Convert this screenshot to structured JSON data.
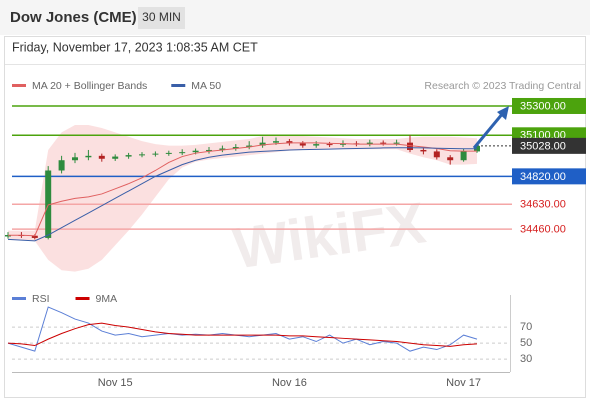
{
  "header": {
    "title": "Dow Jones (CME)",
    "interval": "30 MIN",
    "datetime": "Friday, November 17, 2023 1:08:35 AM CET"
  },
  "watermark": "WikiFX",
  "chart_data": [
    {
      "type": "candlestick",
      "credit": "Research © 2023 Trading Central",
      "up_color": "#2e8b3e",
      "down_color": "#b22222",
      "categories": [
        null,
        null,
        null,
        null,
        null,
        null,
        null,
        null,
        "Nov 15",
        null,
        null,
        null,
        null,
        null,
        null,
        null,
        null,
        null,
        null,
        null,
        null,
        "Nov 16",
        null,
        null,
        null,
        null,
        null,
        null,
        null,
        null,
        null,
        null,
        null,
        null,
        "Nov 17",
        null
      ],
      "candles": [
        {
          "open": 34410,
          "high": 34440,
          "low": 34395,
          "close": 34420
        },
        {
          "open": 34420,
          "high": 34440,
          "low": 34400,
          "close": 34415
        },
        {
          "open": 34415,
          "high": 34425,
          "low": 34390,
          "close": 34400
        },
        {
          "open": 34400,
          "high": 34890,
          "low": 34390,
          "close": 34860
        },
        {
          "open": 34860,
          "high": 34960,
          "low": 34840,
          "close": 34930
        },
        {
          "open": 34930,
          "high": 34980,
          "low": 34910,
          "close": 34950
        },
        {
          "open": 34950,
          "high": 35000,
          "low": 34930,
          "close": 34960
        },
        {
          "open": 34960,
          "high": 34975,
          "low": 34920,
          "close": 34940
        },
        {
          "open": 34940,
          "high": 34970,
          "low": 34925,
          "close": 34955
        },
        {
          "open": 34955,
          "high": 34980,
          "low": 34940,
          "close": 34965
        },
        {
          "open": 34965,
          "high": 34985,
          "low": 34950,
          "close": 34970
        },
        {
          "open": 34970,
          "high": 34990,
          "low": 34955,
          "close": 34975
        },
        {
          "open": 34975,
          "high": 34995,
          "low": 34960,
          "close": 34980
        },
        {
          "open": 34980,
          "high": 35005,
          "low": 34965,
          "close": 34985
        },
        {
          "open": 34985,
          "high": 35010,
          "low": 34970,
          "close": 34995
        },
        {
          "open": 34995,
          "high": 35020,
          "low": 34975,
          "close": 35000
        },
        {
          "open": 35000,
          "high": 35030,
          "low": 34985,
          "close": 35010
        },
        {
          "open": 35010,
          "high": 35040,
          "low": 34995,
          "close": 35020
        },
        {
          "open": 35020,
          "high": 35060,
          "low": 35005,
          "close": 35030
        },
        {
          "open": 35030,
          "high": 35090,
          "low": 35015,
          "close": 35050
        },
        {
          "open": 35050,
          "high": 35085,
          "low": 35035,
          "close": 35060
        },
        {
          "open": 35060,
          "high": 35075,
          "low": 35030,
          "close": 35045
        },
        {
          "open": 35045,
          "high": 35060,
          "low": 35015,
          "close": 35030
        },
        {
          "open": 35030,
          "high": 35060,
          "low": 35015,
          "close": 35040
        },
        {
          "open": 35040,
          "high": 35055,
          "low": 35020,
          "close": 35035
        },
        {
          "open": 35035,
          "high": 35065,
          "low": 35020,
          "close": 35045
        },
        {
          "open": 35045,
          "high": 35060,
          "low": 35025,
          "close": 35040
        },
        {
          "open": 35040,
          "high": 35070,
          "low": 35025,
          "close": 35050
        },
        {
          "open": 35050,
          "high": 35065,
          "low": 35030,
          "close": 35045
        },
        {
          "open": 35045,
          "high": 35070,
          "low": 35030,
          "close": 35050
        },
        {
          "open": 35050,
          "high": 35100,
          "low": 34985,
          "close": 35000
        },
        {
          "open": 35000,
          "high": 35020,
          "low": 34970,
          "close": 34990
        },
        {
          "open": 34990,
          "high": 35005,
          "low": 34935,
          "close": 34950
        },
        {
          "open": 34950,
          "high": 34965,
          "low": 34900,
          "close": 34930
        },
        {
          "open": 34930,
          "high": 35010,
          "low": 34920,
          "close": 34990
        },
        {
          "open": 34990,
          "high": 35045,
          "low": 34980,
          "close": 35028
        }
      ],
      "series": [
        {
          "name": "MA 20 + Bollinger Bands",
          "color": "#e06060",
          "band_color": "#fadada",
          "values": [
            34418,
            34418,
            34415,
            34625,
            34650,
            34670,
            34680,
            34700,
            34735,
            34770,
            34810,
            34860,
            34915,
            34955,
            34978,
            34990,
            35000,
            35010,
            35020,
            35035,
            35042,
            35048,
            35048,
            35048,
            35045,
            35043,
            35040,
            35040,
            35040,
            35040,
            35030,
            35020,
            35010,
            34995,
            34992,
            34992
          ],
          "upper": [
            34450,
            34450,
            34450,
            35000,
            35120,
            35170,
            35170,
            35150,
            35120,
            35090,
            35060,
            35040,
            35030,
            35030,
            35035,
            35045,
            35055,
            35065,
            35075,
            35095,
            35100,
            35100,
            35095,
            35090,
            35085,
            35080,
            35075,
            35075,
            35075,
            35075,
            35085,
            35090,
            35090,
            35090,
            35085,
            35080
          ],
          "lower": [
            34385,
            34385,
            34380,
            34250,
            34180,
            34170,
            34190,
            34250,
            34350,
            34450,
            34560,
            34680,
            34800,
            34880,
            34920,
            34935,
            34945,
            34955,
            34965,
            34975,
            34985,
            34995,
            35000,
            35005,
            35005,
            35005,
            35005,
            35005,
            35005,
            35005,
            34975,
            34950,
            34930,
            34900,
            34900,
            34905
          ]
        },
        {
          "name": "MA 50",
          "color": "#3a5fa8",
          "values": [
            34390,
            34385,
            34380,
            34420,
            34470,
            34520,
            34570,
            34620,
            34670,
            34720,
            34770,
            34820,
            34860,
            34900,
            34930,
            34950,
            34965,
            34975,
            34985,
            34990,
            34995,
            35000,
            35002,
            35004,
            35006,
            35008,
            35010,
            35012,
            35014,
            35015,
            35015,
            35014,
            35012,
            35010,
            35008,
            35008
          ]
        }
      ],
      "levels": [
        {
          "value": 35300,
          "label": "35300.00",
          "color": "#4ca30d",
          "text_color": "#ffffff",
          "boxed": true,
          "dotted": false
        },
        {
          "value": 35100,
          "label": "35100.00",
          "color": "#4ca30d",
          "text_color": "#ffffff",
          "boxed": true,
          "dotted": false
        },
        {
          "value": 35028,
          "label": "35028.00",
          "color": "#333333",
          "text_color": "#ffffff",
          "boxed": true,
          "dotted": true
        },
        {
          "value": 34820,
          "label": "34820.00",
          "color": "#1f5fc6",
          "text_color": "#ffffff",
          "boxed": true,
          "dotted": false
        },
        {
          "value": 34630,
          "label": "34630.00",
          "color": "#f4a6a6",
          "text_color": "#d62020",
          "boxed": false,
          "dotted": false
        },
        {
          "value": 34460,
          "label": "34460.00",
          "color": "#f4a6a6",
          "text_color": "#d62020",
          "boxed": false,
          "dotted": false
        }
      ],
      "ylim": [
        34079,
        35409
      ]
    },
    {
      "type": "line",
      "series": [
        {
          "name": "RSI",
          "color": "#5b7fd6",
          "values": [
            50,
            45,
            40,
            95,
            88,
            80,
            75,
            65,
            60,
            62,
            58,
            60,
            62,
            60,
            61,
            60,
            62,
            60,
            58,
            60,
            62,
            55,
            58,
            52,
            60,
            50,
            55,
            48,
            52,
            50,
            40,
            45,
            42,
            48,
            60,
            55
          ]
        },
        {
          "name": "9MA",
          "color": "#cc0000",
          "values": [
            50,
            49,
            47,
            55,
            62,
            68,
            73,
            75,
            72,
            70,
            67,
            64,
            62,
            61,
            60,
            60,
            60,
            60,
            60,
            60,
            60,
            59,
            59,
            58,
            57,
            56,
            55,
            54,
            53,
            52,
            50,
            48,
            47,
            46,
            48,
            49
          ]
        }
      ],
      "ylim": [
        14,
        110
      ],
      "yticks": [
        70,
        50,
        30
      ]
    }
  ]
}
